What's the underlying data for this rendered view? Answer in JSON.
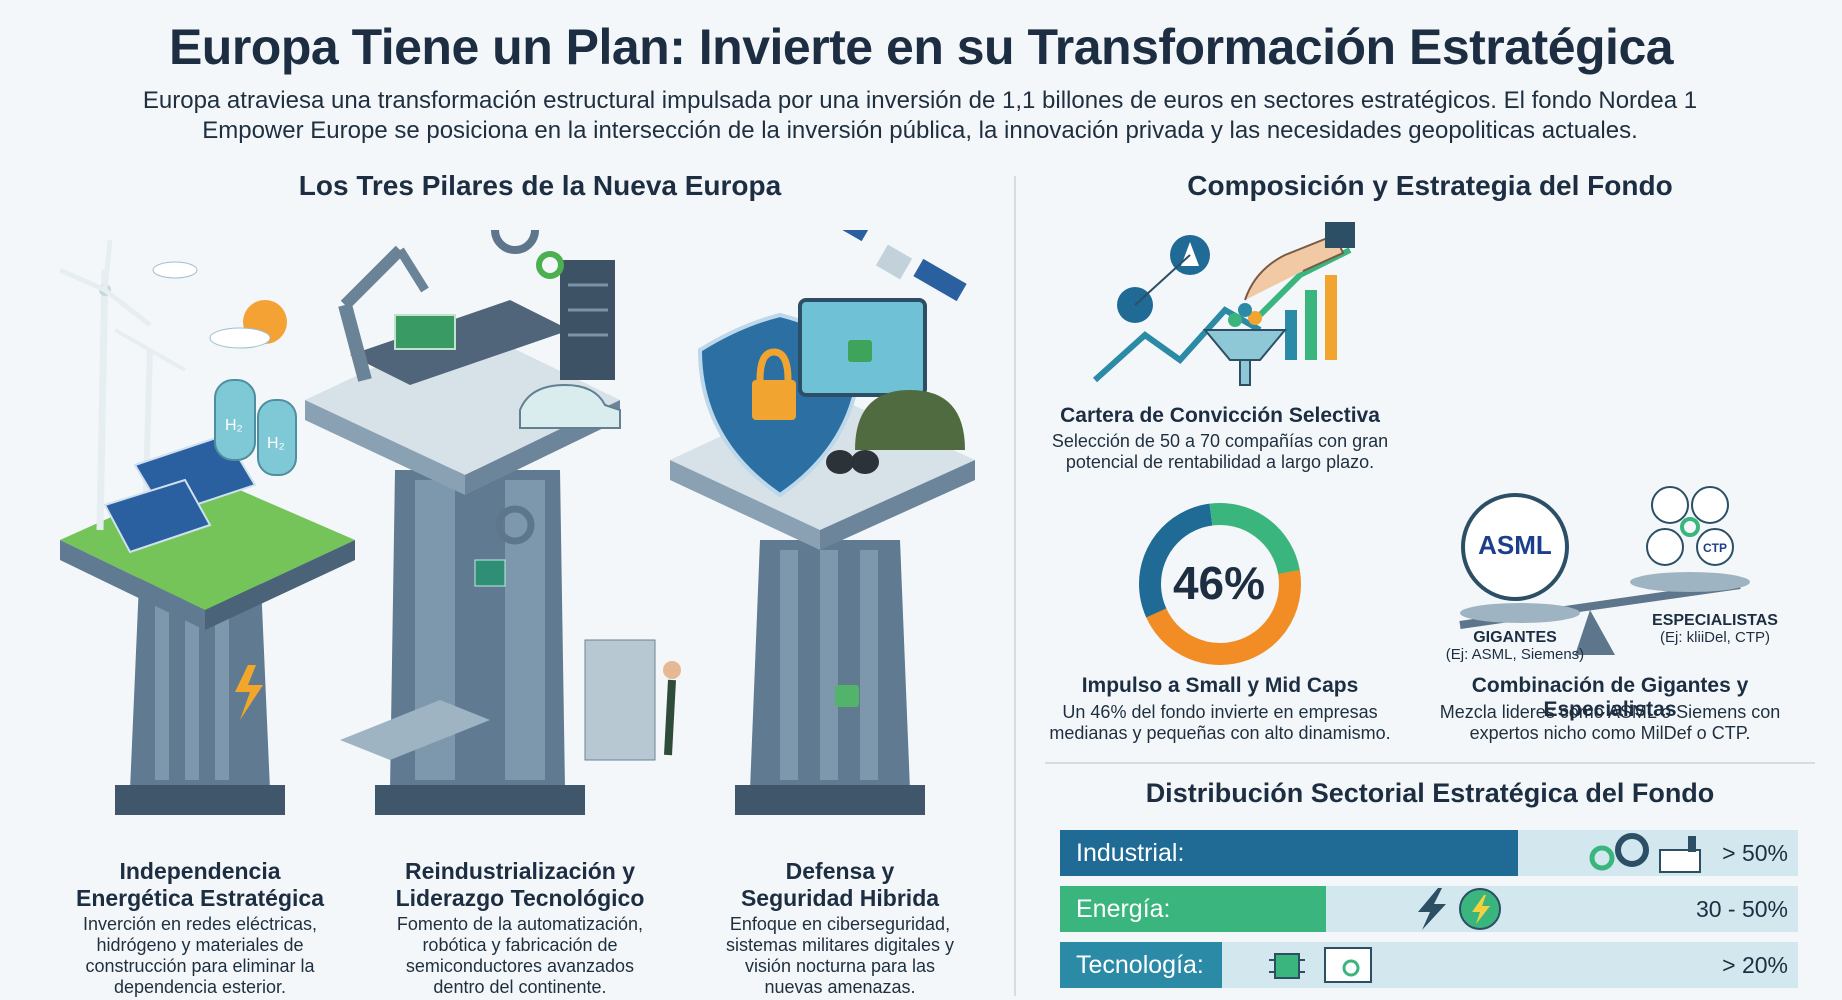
{
  "header": {
    "title": "Europa Tiene un Plan: Invierte en su Transformación Estratégica",
    "subtitle_line1": "Europa atraviesa una transformación estructural impulsada por una inversión de 1,1 billones de euros en sectores estratégicos. El fondo Nordea 1",
    "subtitle_line2": "Empower Europe se posiciona en la intersección de la inversión pública, la innovación privada y las necesidades geopoliticas actuales."
  },
  "pillars": {
    "section_title": "Los Tres Pilares de la Nueva Europa",
    "items": [
      {
        "title_line1": "Independencia",
        "title_line2": "Energética Estratégica",
        "desc_line1": "Inverción en redes eléctricas,",
        "desc_line2": "hidrógeno y materiales de",
        "desc_line3": "construcción para eliminar la",
        "desc_line4": "dependencia esterior.",
        "icon": "wind-solar-hydrogen-icon",
        "badge_h2_a": "H₂",
        "badge_h2_b": "H₂"
      },
      {
        "title_line1": "Reindustrialización y",
        "title_line2": "Liderazgo Tecnológico",
        "desc_line1": "Fomento de la automatización,",
        "desc_line2": "robótica y fabricación de",
        "desc_line3": "semiconductores avanzados",
        "desc_line4": "dentro del continente.",
        "icon": "robot-arm-chip-icon"
      },
      {
        "title_line1": "Defensa y",
        "title_line2": "Seguridad Hibrida",
        "desc_line1": "Enfoque en ciberseguridad,",
        "desc_line2": "sistemas militares digitales y",
        "desc_line3": "visión nocturna para las",
        "desc_line4": "nuevas amenazas.",
        "icon": "shield-lock-icon"
      }
    ]
  },
  "fund": {
    "section_title": "Composición y Estrategia del Fondo",
    "conviction": {
      "title": "Cartera de Convicción Selectiva",
      "desc_line1": "Selección de 50 a 70 compañías con gran",
      "desc_line2": "potencial de rentabilidad a largo plazo.",
      "icon": "funnel-portfolio-icon"
    },
    "smallmid": {
      "title": "Impulso a Small y Mid Caps",
      "desc_line1": "Un 46% del fondo invierte en empresas",
      "desc_line2": "medianas y pequeñas con alto dinamismo.",
      "donut_label": "46%",
      "donut_value": 46
    },
    "combo": {
      "title": "Combinación de Gigantes y Especialistas",
      "desc_line1": "Mezcla lideres como ASML o Siemens con",
      "desc_line2": "expertos nicho como MilDef o CTP.",
      "asml": "ASML",
      "left_label": "GIGANTES",
      "left_sub": "(Ej: ASML, Siemens)",
      "right_label": "ESPECIALISTAS",
      "right_sub": "(Ej: kliiDel, CTP)",
      "logo_ctp": "CTP"
    }
  },
  "distribution": {
    "section_title": "Distribución Sectorial Estratégica del Fondo",
    "rows": [
      {
        "label": "Industrial:",
        "value": "> 50%",
        "fill_fraction": 0.62,
        "color": "#1f6b96",
        "icon": "gear-factory-icon"
      },
      {
        "label": "Energía:",
        "value": "30 - 50%",
        "fill_fraction": 0.36,
        "color": "#3bb57e",
        "icon": "lightning-icon"
      },
      {
        "label": "Tecnología:",
        "value": "> 20%",
        "fill_fraction": 0.22,
        "color": "#2b8aa6",
        "icon": "chip-monitor-icon"
      }
    ]
  }
}
